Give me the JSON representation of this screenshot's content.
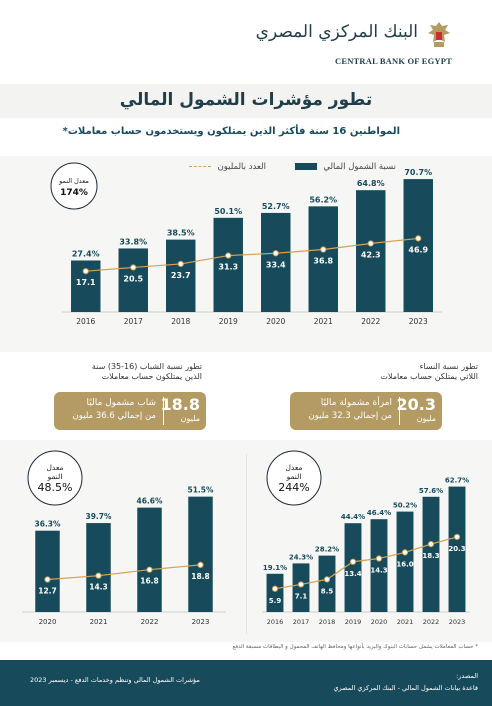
{
  "header": {
    "bank_name_ar": "البنك المركزي المصري",
    "bank_name_en": "CENTRAL BANK OF EGYPT",
    "page_title": "تطور مؤشرات الشمول المالي"
  },
  "colors": {
    "bar": "#174b5b",
    "line": "#d4a256",
    "gold": "#b49a63",
    "label": "#174b5b"
  },
  "main_chart": {
    "subtitle": "المواطنين 16 سنة فأكثر الذين يمتلكون ويستخدمون حساب معاملات*",
    "legend_bar": "نسبة الشمول المالي",
    "legend_line": "العدد بالمليون",
    "growth_label": "معدل النمو",
    "growth_value": "174%"
  },
  "youth": {
    "title_line1": "تطور نسبة الشباب (16-35) سنة",
    "title_line2": "الذين يمتلكون حساب معاملات",
    "number": "18.8",
    "unit": "مليون",
    "line1": "شاب مشمول ماليًا",
    "line2": "من إجمالي 36.6 مليون",
    "growth_label_1": "معدل",
    "growth_label_2": "النمو",
    "growth_value": "48.5%"
  },
  "women": {
    "title_line1": "تطور نسبة النساء",
    "title_line2": "اللاتي يمتلكن حساب معاملات",
    "number": "20.3",
    "unit": "مليون",
    "line1": "امرأة مشمولة ماليًا",
    "line2": "من إجمالي 32.3 مليون",
    "growth_label_1": "معدل",
    "growth_label_2": "النمو",
    "growth_value": "244%"
  },
  "footnote": "* حساب المعاملات يشمل حسابات البنوك والبريد بأنواعها ومحافظ الهاتف المحمول و البطاقات مسبقة الدفع",
  "footer": {
    "source_label": "المصدر:",
    "source_text": "قاعدة بيانات الشمول المالي - البنك المركزي المصري",
    "publication": "مؤشرات الشمول المالي وتنظم وخدمات الدفع - ديسمبر 2023"
  },
  "chart_data": [
    {
      "type": "bar",
      "categories": [
        "2016",
        "2017",
        "2018",
        "2019",
        "2020",
        "2021",
        "2022",
        "2023"
      ],
      "series": [
        {
          "name": "نسبة الشمول المالي",
          "values": [
            27.4,
            33.8,
            38.5,
            50.1,
            52.7,
            56.2,
            64.8,
            70.7
          ],
          "labels": [
            "27.4%",
            "33.8%",
            "38.5%",
            "50.1%",
            "52.7%",
            "56.2%",
            "64.8%",
            "70.7%"
          ]
        },
        {
          "name": "العدد بالمليون",
          "type": "line",
          "values": [
            17.1,
            20.5,
            23.7,
            31.3,
            33.4,
            36.8,
            42.3,
            46.9
          ],
          "labels": [
            "17.1",
            "20.5",
            "23.7",
            "31.3",
            "33.4",
            "36.8",
            "42.3",
            "46.9"
          ]
        }
      ]
    },
    {
      "type": "bar",
      "categories": [
        "2020",
        "2021",
        "2022",
        "2023"
      ],
      "series": [
        {
          "values": [
            36.3,
            39.7,
            46.6,
            51.5
          ],
          "labels": [
            "36.3%",
            "39.7%",
            "46.6%",
            "51.5%"
          ]
        },
        {
          "type": "line",
          "values": [
            12.7,
            14.3,
            16.8,
            18.8
          ],
          "labels": [
            "12.7",
            "14.3",
            "16.8",
            "18.8"
          ]
        }
      ]
    },
    {
      "type": "bar",
      "categories": [
        "2016",
        "2017",
        "2018",
        "2019",
        "2020",
        "2021",
        "2022",
        "2023"
      ],
      "series": [
        {
          "values": [
            19.1,
            24.3,
            28.2,
            44.4,
            46.4,
            50.2,
            57.6,
            62.7
          ],
          "labels": [
            "19.1%",
            "24.3%",
            "28.2%",
            "44.4%",
            "46.4%",
            "50.2%",
            "57.6%",
            "62.7%"
          ]
        },
        {
          "type": "line",
          "values": [
            5.9,
            7.1,
            8.5,
            13.4,
            14.3,
            16.0,
            18.3,
            20.3
          ],
          "labels": [
            "5.9",
            "7.1",
            "8.5",
            "13.4",
            "14.3",
            "16.0",
            "18.3",
            "20.3"
          ]
        }
      ]
    }
  ]
}
